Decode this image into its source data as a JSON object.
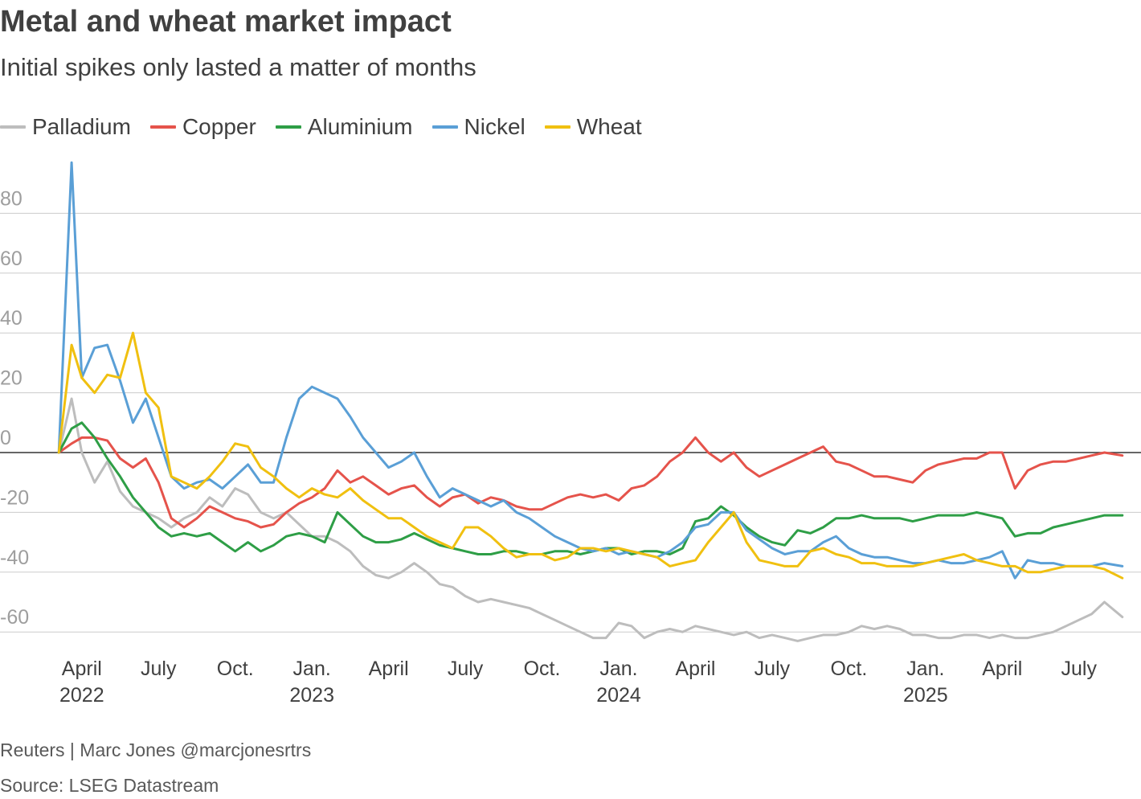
{
  "title": "Metal and wheat market impact",
  "subtitle": "Initial spikes only lasted a matter of months",
  "credit": "Reuters | Marc Jones @marcjonesrtrs",
  "source": "Source: LSEG Datastream",
  "chart_data": {
    "type": "line",
    "title": "Metal and wheat market impact",
    "subtitle": "Initial spikes only lasted a matter of months",
    "xlabel": "",
    "ylabel": "",
    "ylim": [
      -65,
      100
    ],
    "x_unit": "months since Jan. 2022",
    "xlim": [
      2.0,
      43.8
    ],
    "grid": true,
    "legend_position": "top-left",
    "yticks": [
      {
        "value": 80,
        "label": "80"
      },
      {
        "value": 60,
        "label": "60"
      },
      {
        "value": 40,
        "label": "40"
      },
      {
        "value": 20,
        "label": "20"
      },
      {
        "value": 0,
        "label": "0"
      },
      {
        "value": -20,
        "label": "-20"
      },
      {
        "value": -40,
        "label": "-40"
      },
      {
        "value": -60,
        "label": "-60"
      }
    ],
    "xticks": [
      {
        "value": 3,
        "label": "April",
        "year": "2022"
      },
      {
        "value": 6,
        "label": "July",
        "year": ""
      },
      {
        "value": 9,
        "label": "Oct.",
        "year": ""
      },
      {
        "value": 12,
        "label": "Jan.",
        "year": "2023"
      },
      {
        "value": 15,
        "label": "April",
        "year": ""
      },
      {
        "value": 18,
        "label": "July",
        "year": ""
      },
      {
        "value": 21,
        "label": "Oct.",
        "year": ""
      },
      {
        "value": 24,
        "label": "Jan.",
        "year": "2024"
      },
      {
        "value": 27,
        "label": "April",
        "year": ""
      },
      {
        "value": 30,
        "label": "July",
        "year": ""
      },
      {
        "value": 33,
        "label": "Oct.",
        "year": ""
      },
      {
        "value": 36,
        "label": "Jan.",
        "year": "2025"
      },
      {
        "value": 39,
        "label": "April",
        "year": ""
      },
      {
        "value": 42,
        "label": "July",
        "year": ""
      }
    ],
    "x": [
      2.1,
      2.6,
      3.0,
      3.5,
      4.0,
      4.5,
      5.0,
      5.5,
      6.0,
      6.5,
      7.0,
      7.5,
      8.0,
      8.5,
      9.0,
      9.5,
      10.0,
      10.5,
      11.0,
      11.5,
      12.0,
      12.5,
      13.0,
      13.5,
      14.0,
      14.5,
      15.0,
      15.5,
      16.0,
      16.5,
      17.0,
      17.5,
      18.0,
      18.5,
      19.0,
      19.5,
      20.0,
      20.5,
      21.0,
      21.5,
      22.0,
      22.5,
      23.0,
      23.5,
      24.0,
      24.5,
      25.0,
      25.5,
      26.0,
      26.5,
      27.0,
      27.5,
      28.0,
      28.5,
      29.0,
      29.5,
      30.0,
      30.5,
      31.0,
      31.5,
      32.0,
      32.5,
      33.0,
      33.5,
      34.0,
      34.5,
      35.0,
      35.5,
      36.0,
      36.5,
      37.0,
      37.5,
      38.0,
      38.5,
      39.0,
      39.5,
      40.0,
      40.5,
      41.0,
      41.5,
      42.0,
      42.5,
      43.0,
      43.7
    ],
    "series": [
      {
        "name": "Palladium",
        "color": "#bdbdbd",
        "values": [
          0,
          18,
          0,
          -10,
          -3,
          -13,
          -18,
          -20,
          -22,
          -25,
          -22,
          -20,
          -15,
          -18,
          -12,
          -14,
          -20,
          -22,
          -20,
          -24,
          -28,
          -28,
          -30,
          -33,
          -38,
          -41,
          -42,
          -40,
          -37,
          -40,
          -44,
          -45,
          -48,
          -50,
          -49,
          -50,
          -51,
          -52,
          -54,
          -56,
          -58,
          -60,
          -62,
          -62,
          -57,
          -58,
          -62,
          -60,
          -59,
          -60,
          -58,
          -59,
          -60,
          -61,
          -60,
          -62,
          -61,
          -62,
          -63,
          -62,
          -61,
          -61,
          -60,
          -58,
          -59,
          -58,
          -59,
          -61,
          -61,
          -62,
          -62,
          -61,
          -61,
          -62,
          -61,
          -62,
          -62,
          -61,
          -60,
          -58,
          -56,
          -54,
          -50,
          -55
        ]
      },
      {
        "name": "Copper",
        "color": "#e5534b",
        "values": [
          0,
          3,
          5,
          5,
          4,
          -2,
          -5,
          -2,
          -10,
          -22,
          -25,
          -22,
          -18,
          -20,
          -22,
          -23,
          -25,
          -24,
          -20,
          -17,
          -15,
          -12,
          -6,
          -10,
          -8,
          -11,
          -14,
          -12,
          -11,
          -15,
          -18,
          -15,
          -14,
          -17,
          -15,
          -16,
          -18,
          -19,
          -19,
          -17,
          -15,
          -14,
          -15,
          -14,
          -16,
          -12,
          -11,
          -8,
          -3,
          0,
          5,
          0,
          -3,
          0,
          -5,
          -8,
          -6,
          -4,
          -2,
          0,
          2,
          -3,
          -4,
          -6,
          -8,
          -8,
          -9,
          -10,
          -6,
          -4,
          -3,
          -2,
          -2,
          0,
          0,
          -12,
          -6,
          -4,
          -3,
          -3,
          -2,
          -1,
          0,
          -1
        ]
      },
      {
        "name": "Aluminium",
        "color": "#2e9e46",
        "values": [
          0,
          8,
          10,
          5,
          -2,
          -8,
          -15,
          -20,
          -25,
          -28,
          -27,
          -28,
          -27,
          -30,
          -33,
          -30,
          -33,
          -31,
          -28,
          -27,
          -28,
          -30,
          -20,
          -24,
          -28,
          -30,
          -30,
          -29,
          -27,
          -29,
          -31,
          -32,
          -33,
          -34,
          -34,
          -33,
          -33,
          -34,
          -34,
          -33,
          -33,
          -34,
          -33,
          -32,
          -32,
          -34,
          -33,
          -33,
          -34,
          -32,
          -23,
          -22,
          -18,
          -21,
          -25,
          -28,
          -30,
          -31,
          -26,
          -27,
          -25,
          -22,
          -22,
          -21,
          -22,
          -22,
          -22,
          -23,
          -22,
          -21,
          -21,
          -21,
          -20,
          -21,
          -22,
          -28,
          -27,
          -27,
          -25,
          -24,
          -23,
          -22,
          -21,
          -21
        ]
      },
      {
        "name": "Nickel",
        "color": "#5a9fd6",
        "values": [
          0,
          97,
          25,
          35,
          36,
          24,
          10,
          18,
          5,
          -8,
          -12,
          -10,
          -9,
          -12,
          -8,
          -4,
          -10,
          -10,
          5,
          18,
          22,
          20,
          18,
          12,
          5,
          0,
          -5,
          -3,
          0,
          -8,
          -15,
          -12,
          -14,
          -16,
          -18,
          -16,
          -20,
          -22,
          -25,
          -28,
          -30,
          -32,
          -33,
          -32,
          -34,
          -33,
          -34,
          -35,
          -33,
          -30,
          -25,
          -24,
          -20,
          -20,
          -26,
          -29,
          -32,
          -34,
          -33,
          -33,
          -30,
          -28,
          -32,
          -34,
          -35,
          -35,
          -36,
          -37,
          -37,
          -36,
          -37,
          -37,
          -36,
          -35,
          -33,
          -42,
          -36,
          -37,
          -37,
          -38,
          -38,
          -38,
          -37,
          -38
        ]
      },
      {
        "name": "Wheat",
        "color": "#f0c010",
        "values": [
          0,
          36,
          25,
          20,
          26,
          25,
          40,
          20,
          15,
          -8,
          -10,
          -12,
          -8,
          -3,
          3,
          2,
          -5,
          -8,
          -12,
          -15,
          -12,
          -14,
          -15,
          -12,
          -16,
          -19,
          -22,
          -22,
          -25,
          -28,
          -30,
          -32,
          -25,
          -25,
          -28,
          -32,
          -35,
          -34,
          -34,
          -36,
          -35,
          -32,
          -32,
          -33,
          -32,
          -33,
          -34,
          -35,
          -38,
          -37,
          -36,
          -30,
          -25,
          -20,
          -30,
          -36,
          -37,
          -38,
          -38,
          -33,
          -32,
          -34,
          -35,
          -37,
          -37,
          -38,
          -38,
          -38,
          -37,
          -36,
          -35,
          -34,
          -36,
          -37,
          -38,
          -38,
          -40,
          -40,
          -39,
          -38,
          -38,
          -38,
          -39,
          -42
        ]
      }
    ]
  }
}
